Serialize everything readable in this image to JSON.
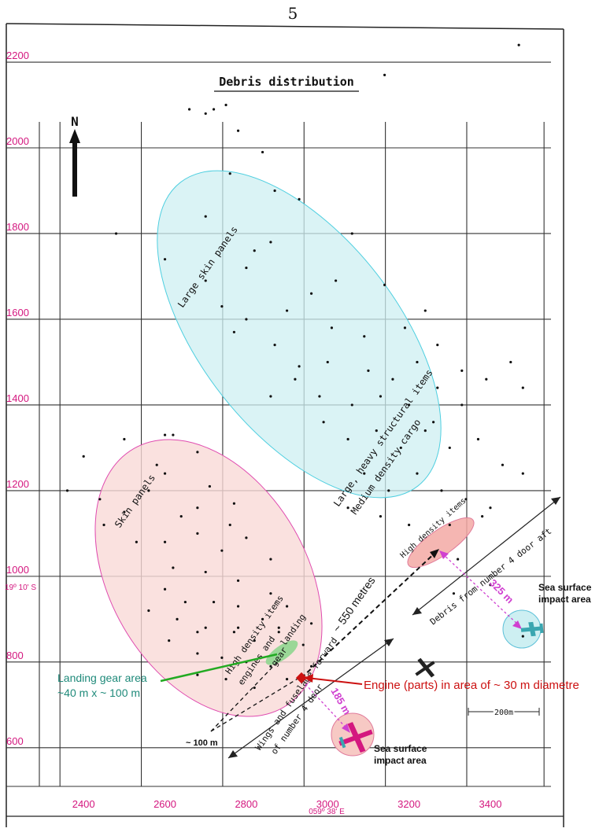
{
  "page_number": "5",
  "chart_data": {
    "type": "scatter",
    "title": "Debris distribution",
    "x_ticks": [
      2400,
      2600,
      2800,
      3000,
      3200,
      3400
    ],
    "y_ticks": [
      600,
      800,
      1000,
      1200,
      1400,
      1600,
      1800,
      2000,
      2200
    ],
    "x_tick_labels": [
      "2400",
      "2600",
      "2800",
      "3000",
      "3200",
      "3400"
    ],
    "y_tick_labels": [
      "600",
      "800",
      "1000",
      "1200",
      "1400",
      "1600",
      "1800",
      "2000",
      "2200"
    ],
    "xlim": [
      2210,
      3580
    ],
    "ylim": [
      440,
      2290
    ],
    "lat_label": "19º 10' S",
    "lon_label": "059º 38' E",
    "north_label": "N",
    "scale_bar_label": "200m",
    "regions": [
      {
        "name": "Large skin panels",
        "color": "#cdeff2"
      },
      {
        "name": "Skin panels",
        "color": "#f9dad7"
      },
      {
        "name": "High density items",
        "color": "#f3a9a4"
      },
      {
        "name": "Landing gear area",
        "color": "#8fd68f"
      }
    ],
    "region_labels": {
      "large_skin": "Large skin panels",
      "heavy": "Large, heavy structural items",
      "cargo": "Medium density cargo",
      "skin": "Skin panels",
      "high_density_upper": "High density items",
      "high_density_lower": "High density items",
      "engines": "engines and",
      "landing": "landing",
      "gear": "gear"
    },
    "annotations": {
      "landing_gear_line1": "Landing gear area",
      "landing_gear_line2": "~40 m  x  ~  100 m",
      "engine": "Engine (parts) in area of ~ 30 m diametre",
      "distance_550": "~ 550 metres",
      "distance_100": "~ 100 m",
      "distance_325": "325 m",
      "distance_185": "185 m",
      "impact_right_1": "Sea surface",
      "impact_right_2": "impact area",
      "impact_bottom_1": "Sea surface",
      "impact_bottom_2": "impact area",
      "debris_door4": "Debris from number 4 door aft",
      "wings_1": "Wings and fuselage forward",
      "wings_2": "of number 4 door"
    },
    "debris_points": [
      [
        2660,
        2090
      ],
      [
        2700,
        2080
      ],
      [
        2720,
        2090
      ],
      [
        2750,
        2100
      ],
      [
        2900,
        2160
      ],
      [
        3140,
        2170
      ],
      [
        3470,
        2240
      ],
      [
        2780,
        2040
      ],
      [
        2840,
        1990
      ],
      [
        2760,
        1940
      ],
      [
        2870,
        1900
      ],
      [
        2930,
        1880
      ],
      [
        2820,
        1760
      ],
      [
        2600,
        1740
      ],
      [
        2480,
        1800
      ],
      [
        2700,
        1840
      ],
      [
        2800,
        1720
      ],
      [
        2860,
        1780
      ],
      [
        3060,
        1800
      ],
      [
        2700,
        1690
      ],
      [
        2740,
        1630
      ],
      [
        2800,
        1600
      ],
      [
        2900,
        1620
      ],
      [
        2960,
        1660
      ],
      [
        3020,
        1690
      ],
      [
        3140,
        1680
      ],
      [
        3010,
        1580
      ],
      [
        3090,
        1560
      ],
      [
        3190,
        1580
      ],
      [
        3240,
        1620
      ],
      [
        2770,
        1570
      ],
      [
        2870,
        1540
      ],
      [
        2930,
        1490
      ],
      [
        3000,
        1500
      ],
      [
        3100,
        1480
      ],
      [
        3160,
        1460
      ],
      [
        3220,
        1500
      ],
      [
        3270,
        1540
      ],
      [
        2860,
        1420
      ],
      [
        2920,
        1460
      ],
      [
        2980,
        1420
      ],
      [
        3060,
        1400
      ],
      [
        3130,
        1420
      ],
      [
        3200,
        1400
      ],
      [
        3270,
        1440
      ],
      [
        3330,
        1480
      ],
      [
        3390,
        1460
      ],
      [
        3450,
        1500
      ],
      [
        3480,
        1440
      ],
      [
        2990,
        1360
      ],
      [
        3050,
        1320
      ],
      [
        3120,
        1340
      ],
      [
        3180,
        1300
      ],
      [
        3240,
        1340
      ],
      [
        3300,
        1300
      ],
      [
        3370,
        1320
      ],
      [
        3430,
        1260
      ],
      [
        3480,
        1240
      ],
      [
        3090,
        1240
      ],
      [
        3150,
        1200
      ],
      [
        3220,
        1240
      ],
      [
        3280,
        1200
      ],
      [
        3340,
        1180
      ],
      [
        3400,
        1160
      ],
      [
        3050,
        1160
      ],
      [
        3130,
        1140
      ],
      [
        3200,
        1120
      ],
      [
        3300,
        1120
      ],
      [
        3380,
        1140
      ],
      [
        3260,
        1360
      ],
      [
        3330,
        1400
      ],
      [
        2400,
        1280
      ],
      [
        2360,
        1200
      ],
      [
        2440,
        1180
      ],
      [
        2500,
        1150
      ],
      [
        2560,
        1200
      ],
      [
        2600,
        1240
      ],
      [
        2680,
        1290
      ],
      [
        2620,
        1330
      ],
      [
        2710,
        1210
      ],
      [
        2770,
        1170
      ],
      [
        2450,
        1120
      ],
      [
        2530,
        1080
      ],
      [
        2600,
        1080
      ],
      [
        2680,
        1100
      ],
      [
        2740,
        1060
      ],
      [
        2800,
        1090
      ],
      [
        2860,
        1040
      ],
      [
        2620,
        1020
      ],
      [
        2700,
        1010
      ],
      [
        2780,
        990
      ],
      [
        2860,
        960
      ],
      [
        2600,
        970
      ],
      [
        2650,
        940
      ],
      [
        2720,
        940
      ],
      [
        2780,
        930
      ],
      [
        2840,
        900
      ],
      [
        2900,
        930
      ],
      [
        2960,
        890
      ],
      [
        2560,
        920
      ],
      [
        2630,
        900
      ],
      [
        2700,
        880
      ],
      [
        2770,
        870
      ],
      [
        2820,
        850
      ],
      [
        2880,
        870
      ],
      [
        2940,
        840
      ],
      [
        2610,
        850
      ],
      [
        2680,
        820
      ],
      [
        2740,
        810
      ],
      [
        2800,
        800
      ],
      [
        2860,
        790
      ],
      [
        2680,
        770
      ],
      [
        2750,
        760
      ],
      [
        2820,
        740
      ],
      [
        2900,
        760
      ],
      [
        2960,
        790
      ],
      [
        2580,
        1260
      ],
      [
        2640,
        1140
      ],
      [
        2680,
        1160
      ],
      [
        2760,
        1120
      ],
      [
        2600,
        1330
      ],
      [
        2500,
        1320
      ],
      [
        2780,
        880
      ],
      [
        2880,
        880
      ],
      [
        2680,
        870
      ],
      [
        3320,
        1040
      ],
      [
        3480,
        860
      ],
      [
        3400,
        980
      ],
      [
        3310,
        960
      ]
    ]
  }
}
